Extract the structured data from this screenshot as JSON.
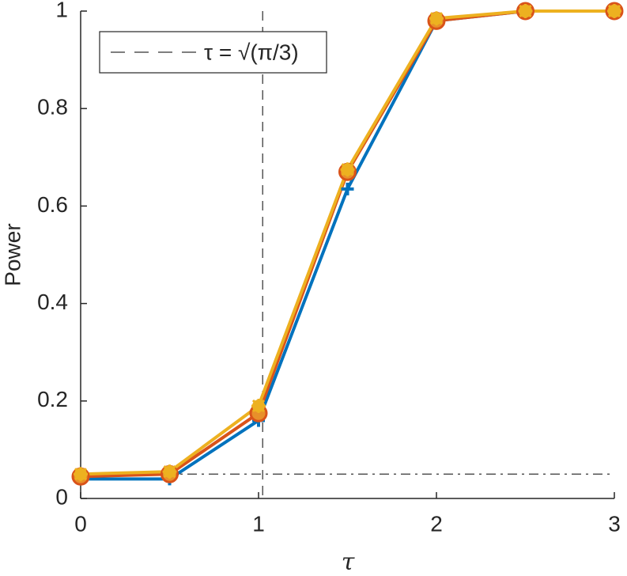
{
  "chart_data": {
    "type": "line",
    "x_label": "τ",
    "y_label": "Power",
    "x": [
      0,
      0.5,
      1,
      1.5,
      2,
      2.5,
      3
    ],
    "series": [
      {
        "color": "#0072BD",
        "marker": "plus",
        "values": [
          0.04,
          0.04,
          0.16,
          0.635,
          0.98,
          1,
          1
        ]
      },
      {
        "color": "#D95319",
        "marker": "circle",
        "values": [
          0.045,
          0.05,
          0.175,
          0.67,
          0.98,
          1,
          1
        ]
      },
      {
        "color": "#EDB120",
        "marker": "star",
        "values": [
          0.05,
          0.055,
          0.19,
          0.675,
          0.985,
          1,
          1
        ]
      }
    ],
    "reference_lines": [
      {
        "x": 1.0233,
        "label": "τ = √(π/3)",
        "style": "dashed",
        "color": "#555555"
      },
      {
        "y": 0.05,
        "style": "dashdot",
        "color": "#555555"
      }
    ],
    "xlim": [
      0,
      3
    ],
    "ylim": [
      0,
      1
    ],
    "xticks": [
      0,
      1,
      2,
      3
    ],
    "yticks": [
      0,
      0.2,
      0.4,
      0.6,
      0.8,
      1
    ],
    "legend": "top-left"
  }
}
